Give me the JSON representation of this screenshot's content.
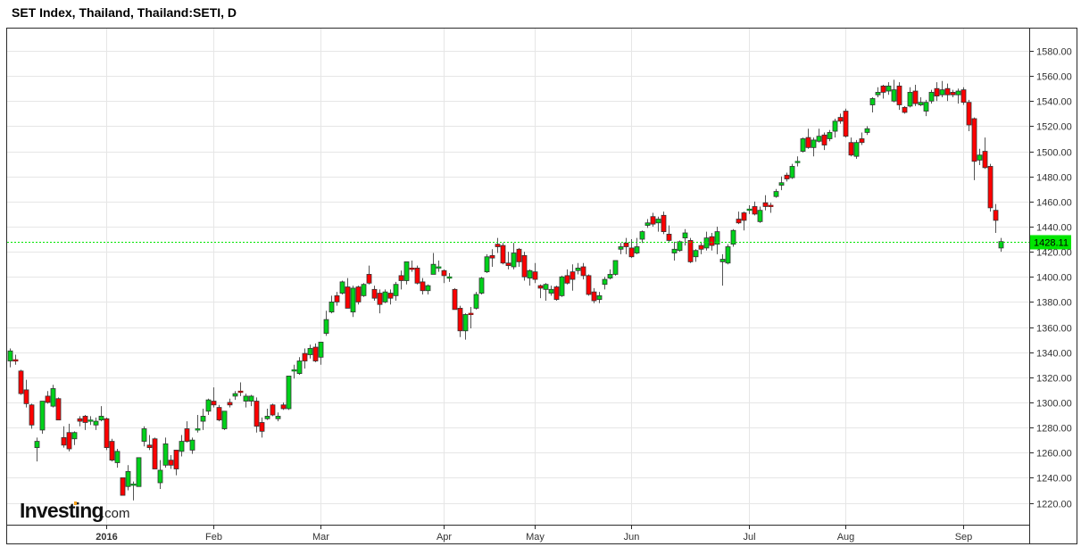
{
  "title": "SET Index, Thailand, Thailand:SETI, D",
  "logo": {
    "brand": "Investing",
    "suffix": ".com"
  },
  "colors": {
    "up": "#00d21a",
    "down": "#ff0000",
    "border": "#2b2b2b",
    "grid": "#e6e6e6",
    "last_price": "#00e600"
  },
  "chart_data": {
    "type": "candlestick",
    "title": "SET Index, Thailand, Thailand:SETI, D",
    "ylim": [
      1210,
      1598
    ],
    "yticks": [
      "1220.00",
      "1240.00",
      "1260.00",
      "1280.00",
      "1300.00",
      "1320.00",
      "1340.00",
      "1360.00",
      "1380.00",
      "1400.00",
      "1420.00",
      "1440.00",
      "1460.00",
      "1480.00",
      "1500.00",
      "1520.00",
      "1540.00",
      "1560.00",
      "1580.00"
    ],
    "xticks": [
      {
        "label": "2016",
        "index": 18,
        "bold": true
      },
      {
        "label": "Feb",
        "index": 38
      },
      {
        "label": "Mar",
        "index": 58
      },
      {
        "label": "Apr",
        "index": 81
      },
      {
        "label": "May",
        "index": 98
      },
      {
        "label": "Jun",
        "index": 116
      },
      {
        "label": "Jul",
        "index": 138
      },
      {
        "label": "Aug",
        "index": 156
      },
      {
        "label": "Sep",
        "index": 178
      }
    ],
    "grid": true,
    "last_price": "1428.11",
    "ohlc": [
      [
        1333,
        1343,
        1328,
        1341
      ],
      [
        1334,
        1338,
        1330,
        1333
      ],
      [
        1325,
        1326,
        1306,
        1307
      ],
      [
        1310,
        1318,
        1296,
        1299
      ],
      [
        1298,
        1299,
        1279,
        1282
      ],
      [
        1264,
        1272,
        1253,
        1269
      ],
      [
        1278,
        1301,
        1275,
        1301
      ],
      [
        1305,
        1309,
        1299,
        1300
      ],
      [
        1297,
        1314,
        1296,
        1311
      ],
      [
        1303,
        1304,
        1286,
        1286
      ],
      [
        1272,
        1281,
        1264,
        1266
      ],
      [
        1276,
        1283,
        1261,
        1263
      ],
      [
        1271,
        1277,
        1266,
        1276
      ],
      [
        1287,
        1289,
        1281,
        1285
      ],
      [
        1289,
        1290,
        1278,
        1284
      ],
      [
        1285,
        1289,
        1282,
        1286
      ],
      [
        1282,
        1288,
        1278,
        1285
      ],
      [
        1286,
        1297,
        1285,
        1289
      ],
      [
        1287,
        1288,
        1262,
        1264
      ],
      [
        1269,
        1271,
        1253,
        1254
      ],
      [
        1252,
        1263,
        1248,
        1261
      ],
      [
        1240,
        1240,
        1226,
        1226
      ],
      [
        1233,
        1250,
        1230,
        1245
      ],
      [
        1235,
        1237,
        1222,
        1235
      ],
      [
        1233,
        1256,
        1233,
        1256
      ],
      [
        1269,
        1281,
        1265,
        1279
      ],
      [
        1266,
        1274,
        1262,
        1264
      ],
      [
        1271,
        1272,
        1247,
        1247
      ],
      [
        1236,
        1254,
        1231,
        1246
      ],
      [
        1250,
        1272,
        1248,
        1267
      ],
      [
        1254,
        1258,
        1247,
        1250
      ],
      [
        1262,
        1262,
        1242,
        1247
      ],
      [
        1261,
        1274,
        1257,
        1269
      ],
      [
        1279,
        1285,
        1268,
        1269
      ],
      [
        1262,
        1272,
        1259,
        1270
      ],
      [
        1278,
        1290,
        1276,
        1279
      ],
      [
        1285,
        1295,
        1278,
        1289
      ],
      [
        1293,
        1303,
        1290,
        1302
      ],
      [
        1301,
        1312,
        1296,
        1298
      ],
      [
        1296,
        1298,
        1285,
        1286
      ],
      [
        1279,
        1293,
        1278,
        1293
      ],
      [
        1300,
        1303,
        1296,
        1298
      ],
      [
        1305,
        1309,
        1302,
        1307
      ],
      [
        1309,
        1316,
        1305,
        1308
      ],
      [
        1301,
        1307,
        1296,
        1305
      ],
      [
        1301,
        1306,
        1297,
        1305
      ],
      [
        1301,
        1304,
        1276,
        1281
      ],
      [
        1284,
        1288,
        1272,
        1277
      ],
      [
        1287,
        1295,
        1286,
        1289
      ],
      [
        1298,
        1299,
        1289,
        1290
      ],
      [
        1287,
        1292,
        1285,
        1289
      ],
      [
        1298,
        1300,
        1294,
        1295
      ],
      [
        1295,
        1321,
        1294,
        1321
      ],
      [
        1325,
        1330,
        1319,
        1326
      ],
      [
        1323,
        1336,
        1322,
        1333
      ],
      [
        1339,
        1343,
        1327,
        1333
      ],
      [
        1338,
        1346,
        1335,
        1343
      ],
      [
        1344,
        1347,
        1332,
        1333
      ],
      [
        1336,
        1348,
        1330,
        1348
      ],
      [
        1355,
        1373,
        1353,
        1366
      ],
      [
        1372,
        1385,
        1371,
        1380
      ],
      [
        1385,
        1388,
        1377,
        1380
      ],
      [
        1387,
        1397,
        1386,
        1396
      ],
      [
        1392,
        1399,
        1375,
        1375
      ],
      [
        1372,
        1393,
        1368,
        1391
      ],
      [
        1392,
        1393,
        1378,
        1380
      ],
      [
        1385,
        1395,
        1384,
        1394
      ],
      [
        1402,
        1409,
        1394,
        1395
      ],
      [
        1390,
        1393,
        1381,
        1383
      ],
      [
        1387,
        1390,
        1371,
        1378
      ],
      [
        1380,
        1390,
        1379,
        1388
      ],
      [
        1387,
        1390,
        1378,
        1383
      ],
      [
        1385,
        1396,
        1381,
        1394
      ],
      [
        1401,
        1405,
        1390,
        1397
      ],
      [
        1397,
        1412,
        1394,
        1412
      ],
      [
        1407,
        1413,
        1404,
        1406
      ],
      [
        1407,
        1409,
        1394,
        1395
      ],
      [
        1396,
        1399,
        1386,
        1389
      ],
      [
        1389,
        1394,
        1386,
        1393
      ],
      [
        1402,
        1419,
        1402,
        1410
      ],
      [
        1407,
        1413,
        1404,
        1408
      ],
      [
        1405,
        1406,
        1395,
        1401
      ],
      [
        1400,
        1403,
        1396,
        1400
      ],
      [
        1390,
        1391,
        1374,
        1374
      ],
      [
        1375,
        1377,
        1352,
        1357
      ],
      [
        1357,
        1371,
        1350,
        1370
      ],
      [
        1371,
        1376,
        1359,
        1370
      ],
      [
        1375,
        1388,
        1374,
        1386
      ],
      [
        1387,
        1400,
        1386,
        1399
      ],
      [
        1404,
        1418,
        1403,
        1416
      ],
      [
        1417,
        1422,
        1408,
        1415
      ],
      [
        1426,
        1431,
        1419,
        1424
      ],
      [
        1425,
        1427,
        1410,
        1411
      ],
      [
        1411,
        1420,
        1406,
        1409
      ],
      [
        1408,
        1427,
        1406,
        1419
      ],
      [
        1422,
        1423,
        1408,
        1412
      ],
      [
        1417,
        1420,
        1397,
        1400
      ],
      [
        1399,
        1406,
        1393,
        1405
      ],
      [
        1404,
        1411,
        1395,
        1398
      ],
      [
        1393,
        1394,
        1383,
        1391
      ],
      [
        1390,
        1395,
        1381,
        1394
      ],
      [
        1387,
        1393,
        1385,
        1390
      ],
      [
        1392,
        1393,
        1381,
        1382
      ],
      [
        1385,
        1401,
        1384,
        1400
      ],
      [
        1401,
        1406,
        1394,
        1395
      ],
      [
        1404,
        1410,
        1389,
        1398
      ],
      [
        1405,
        1411,
        1402,
        1407
      ],
      [
        1408,
        1411,
        1398,
        1401
      ],
      [
        1401,
        1402,
        1385,
        1386
      ],
      [
        1388,
        1391,
        1379,
        1381
      ],
      [
        1382,
        1388,
        1379,
        1385
      ],
      [
        1394,
        1400,
        1390,
        1398
      ],
      [
        1399,
        1406,
        1398,
        1402
      ],
      [
        1402,
        1413,
        1401,
        1413
      ],
      [
        1422,
        1427,
        1418,
        1424
      ],
      [
        1427,
        1431,
        1418,
        1424
      ],
      [
        1423,
        1430,
        1415,
        1416
      ],
      [
        1419,
        1431,
        1418,
        1424
      ],
      [
        1430,
        1437,
        1427,
        1436
      ],
      [
        1441,
        1446,
        1439,
        1443
      ],
      [
        1448,
        1451,
        1440,
        1442
      ],
      [
        1443,
        1448,
        1436,
        1446
      ],
      [
        1449,
        1452,
        1434,
        1436
      ],
      [
        1434,
        1441,
        1428,
        1429
      ],
      [
        1419,
        1428,
        1413,
        1422
      ],
      [
        1421,
        1429,
        1420,
        1428
      ],
      [
        1431,
        1438,
        1425,
        1435
      ],
      [
        1429,
        1431,
        1411,
        1412
      ],
      [
        1416,
        1422,
        1412,
        1421
      ],
      [
        1425,
        1428,
        1418,
        1422
      ],
      [
        1423,
        1436,
        1421,
        1431
      ],
      [
        1432,
        1435,
        1421,
        1425
      ],
      [
        1426,
        1440,
        1418,
        1436
      ],
      [
        1412,
        1418,
        1393,
        1414
      ],
      [
        1411,
        1426,
        1410,
        1424
      ],
      [
        1426,
        1438,
        1424,
        1437
      ],
      [
        1446,
        1452,
        1442,
        1443
      ],
      [
        1451,
        1452,
        1437,
        1445
      ],
      [
        1453,
        1457,
        1450,
        1454
      ],
      [
        1456,
        1460,
        1449,
        1450
      ],
      [
        1444,
        1456,
        1443,
        1453
      ],
      [
        1459,
        1465,
        1453,
        1456
      ],
      [
        1457,
        1459,
        1451,
        1456
      ],
      [
        1464,
        1470,
        1463,
        1468
      ],
      [
        1473,
        1480,
        1469,
        1475
      ],
      [
        1481,
        1483,
        1476,
        1478
      ],
      [
        1479,
        1490,
        1478,
        1488
      ],
      [
        1492,
        1496,
        1488,
        1492
      ],
      [
        1500,
        1511,
        1499,
        1510
      ],
      [
        1511,
        1518,
        1502,
        1503
      ],
      [
        1503,
        1511,
        1496,
        1509
      ],
      [
        1508,
        1518,
        1507,
        1512
      ],
      [
        1513,
        1515,
        1501,
        1505
      ],
      [
        1510,
        1517,
        1508,
        1515
      ],
      [
        1516,
        1526,
        1511,
        1524
      ],
      [
        1527,
        1530,
        1522,
        1524
      ],
      [
        1532,
        1534,
        1511,
        1512
      ],
      [
        1507,
        1511,
        1496,
        1497
      ],
      [
        1496,
        1509,
        1494,
        1507
      ],
      [
        1510,
        1515,
        1505,
        1507
      ],
      [
        1515,
        1520,
        1513,
        1518
      ],
      [
        1537,
        1543,
        1531,
        1542
      ],
      [
        1545,
        1551,
        1543,
        1547
      ],
      [
        1552,
        1553,
        1542,
        1547
      ],
      [
        1548,
        1555,
        1545,
        1552
      ],
      [
        1540,
        1557,
        1539,
        1549
      ],
      [
        1552,
        1555,
        1533,
        1537
      ],
      [
        1535,
        1536,
        1530,
        1531
      ],
      [
        1536,
        1551,
        1535,
        1547
      ],
      [
        1548,
        1553,
        1536,
        1538
      ],
      [
        1537,
        1543,
        1536,
        1539
      ],
      [
        1532,
        1541,
        1528,
        1539
      ],
      [
        1540,
        1549,
        1538,
        1547
      ],
      [
        1550,
        1555,
        1540,
        1544
      ],
      [
        1545,
        1556,
        1543,
        1549
      ],
      [
        1550,
        1554,
        1540,
        1545
      ],
      [
        1547,
        1549,
        1543,
        1545
      ],
      [
        1545,
        1550,
        1538,
        1548
      ],
      [
        1549,
        1551,
        1537,
        1539
      ],
      [
        1539,
        1541,
        1516,
        1521
      ],
      [
        1526,
        1527,
        1477,
        1492
      ],
      [
        1493,
        1502,
        1489,
        1497
      ],
      [
        1500,
        1511,
        1486,
        1487
      ],
      [
        1488,
        1490,
        1452,
        1455
      ],
      [
        1453,
        1458,
        1435,
        1445
      ],
      [
        1423,
        1431,
        1420,
        1428.11
      ]
    ]
  }
}
